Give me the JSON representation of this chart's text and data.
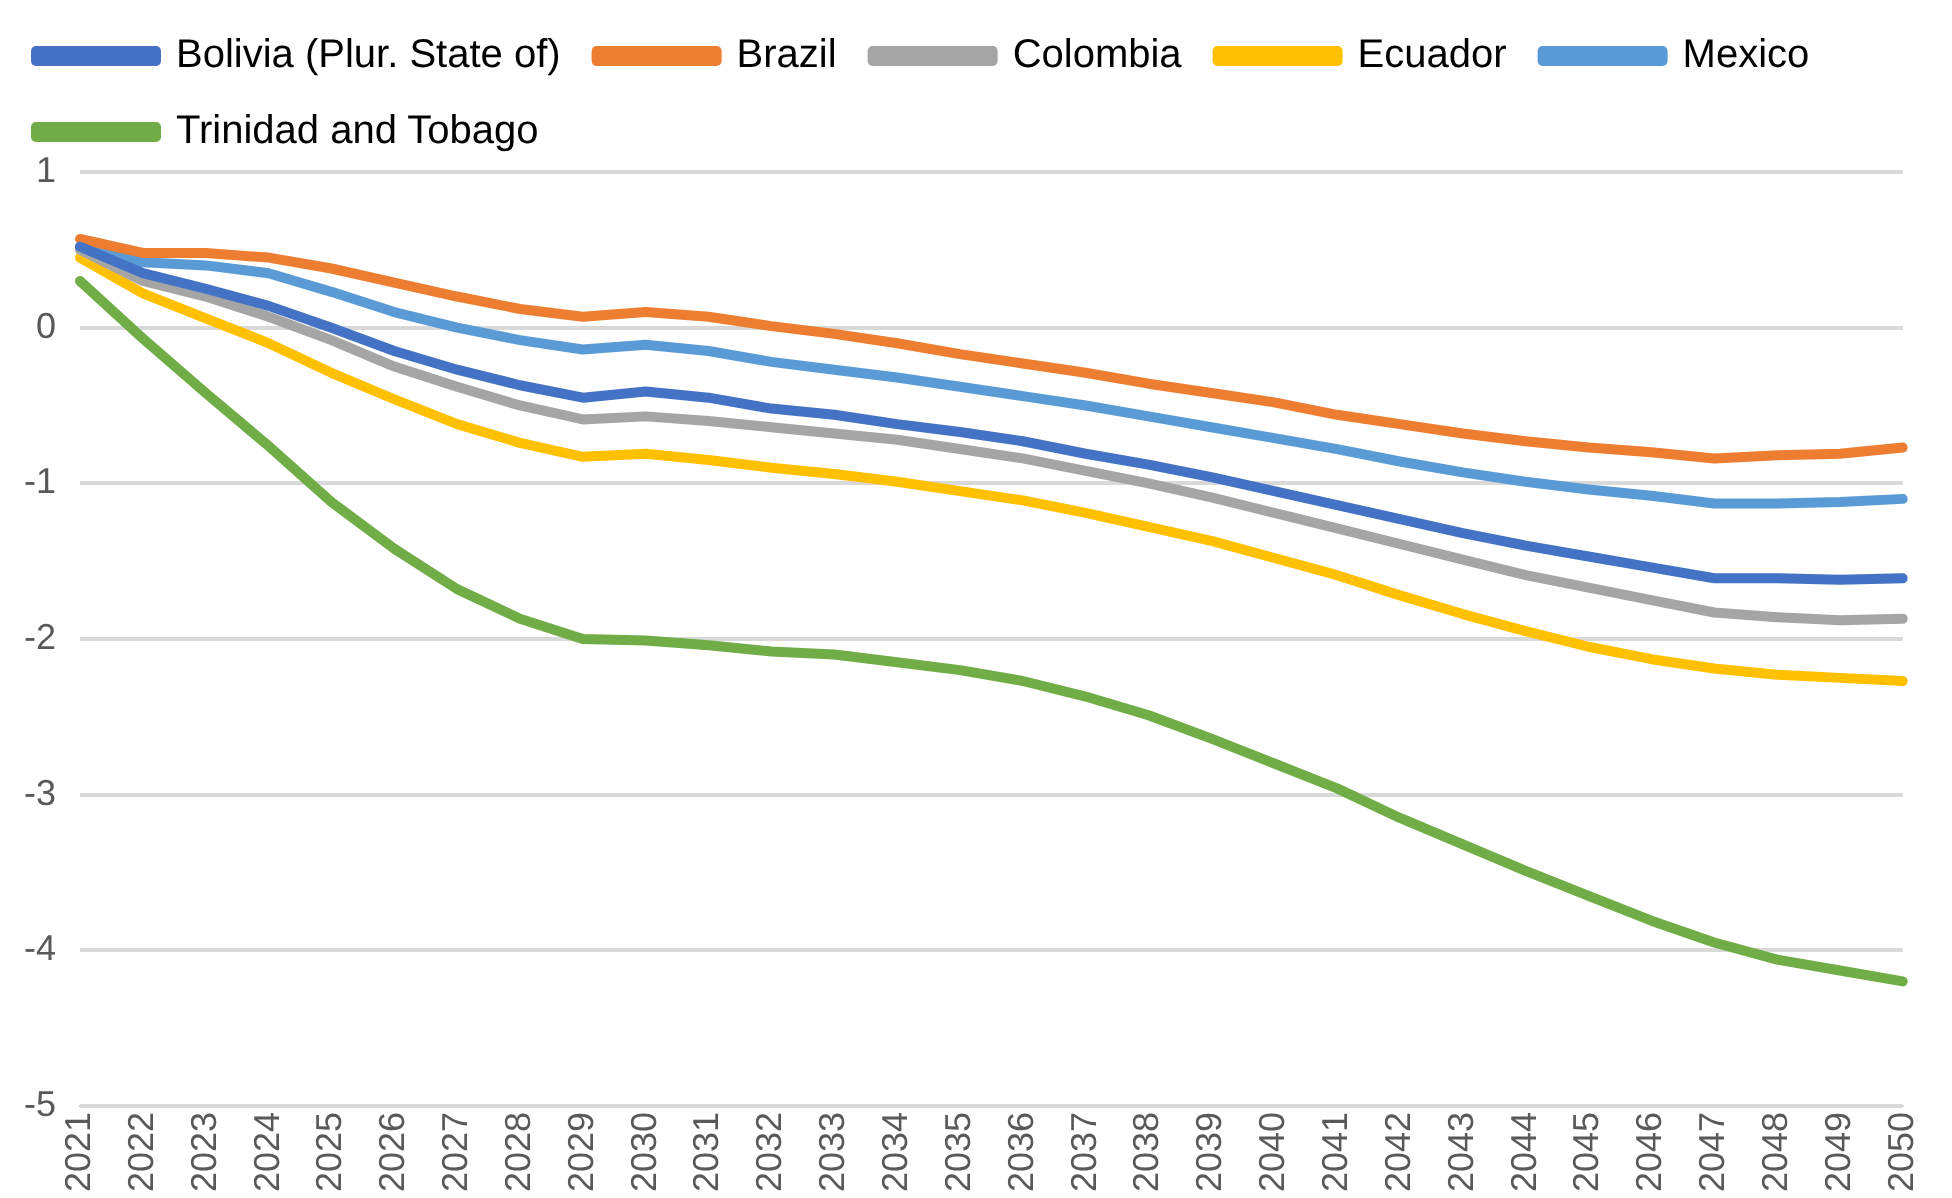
{
  "chart_data": {
    "type": "line",
    "categories": [
      "2021",
      "2022",
      "2023",
      "2024",
      "2025",
      "2026",
      "2027",
      "2028",
      "2029",
      "2030",
      "2031",
      "2032",
      "2033",
      "2034",
      "2035",
      "2036",
      "2037",
      "2038",
      "2039",
      "2040",
      "2041",
      "2042",
      "2043",
      "2044",
      "2045",
      "2046",
      "2047",
      "2048",
      "2049",
      "2050"
    ],
    "series": [
      {
        "name": "Bolivia (Plur. State of)",
        "color": "#4472c4",
        "values": [
          0.52,
          0.35,
          0.25,
          0.14,
          0.0,
          -0.15,
          -0.27,
          -0.37,
          -0.45,
          -0.41,
          -0.45,
          -0.52,
          -0.56,
          -0.62,
          -0.67,
          -0.73,
          -0.81,
          -0.88,
          -0.96,
          -1.05,
          -1.14,
          -1.23,
          -1.32,
          -1.4,
          -1.47,
          -1.54,
          -1.61,
          -1.61,
          -1.62,
          -1.61
        ]
      },
      {
        "name": "Brazil",
        "color": "#ed7d31",
        "values": [
          0.57,
          0.48,
          0.48,
          0.45,
          0.38,
          0.29,
          0.2,
          0.12,
          0.07,
          0.1,
          0.07,
          0.01,
          -0.04,
          -0.1,
          -0.17,
          -0.23,
          -0.29,
          -0.36,
          -0.42,
          -0.48,
          -0.56,
          -0.62,
          -0.68,
          -0.73,
          -0.77,
          -0.8,
          -0.84,
          -0.82,
          -0.81,
          -0.77
        ]
      },
      {
        "name": "Colombia",
        "color": "#a5a5a5",
        "values": [
          0.5,
          0.3,
          0.2,
          0.07,
          -0.08,
          -0.25,
          -0.38,
          -0.5,
          -0.59,
          -0.57,
          -0.6,
          -0.64,
          -0.68,
          -0.72,
          -0.78,
          -0.84,
          -0.92,
          -1.0,
          -1.09,
          -1.19,
          -1.29,
          -1.39,
          -1.49,
          -1.59,
          -1.67,
          -1.75,
          -1.83,
          -1.86,
          -1.88,
          -1.87
        ]
      },
      {
        "name": "Ecuador",
        "color": "#ffc000",
        "values": [
          0.45,
          0.22,
          0.06,
          -0.1,
          -0.29,
          -0.46,
          -0.62,
          -0.74,
          -0.83,
          -0.81,
          -0.85,
          -0.9,
          -0.94,
          -0.99,
          -1.05,
          -1.11,
          -1.19,
          -1.28,
          -1.37,
          -1.48,
          -1.59,
          -1.72,
          -1.84,
          -1.95,
          -2.05,
          -2.13,
          -2.19,
          -2.23,
          -2.25,
          -2.27
        ]
      },
      {
        "name": "Mexico",
        "color": "#5b9bd5",
        "values": [
          0.52,
          0.42,
          0.4,
          0.35,
          0.23,
          0.1,
          0.0,
          -0.08,
          -0.14,
          -0.11,
          -0.15,
          -0.22,
          -0.27,
          -0.32,
          -0.38,
          -0.44,
          -0.5,
          -0.57,
          -0.64,
          -0.71,
          -0.78,
          -0.86,
          -0.93,
          -0.99,
          -1.04,
          -1.08,
          -1.13,
          -1.13,
          -1.12,
          -1.1
        ]
      },
      {
        "name": "Trinidad and Tobago",
        "color": "#70ad47",
        "values": [
          0.3,
          -0.07,
          -0.42,
          -0.76,
          -1.12,
          -1.42,
          -1.68,
          -1.87,
          -2.0,
          -2.01,
          -2.04,
          -2.08,
          -2.1,
          -2.15,
          -2.2,
          -2.27,
          -2.37,
          -2.49,
          -2.64,
          -2.8,
          -2.96,
          -3.15,
          -3.32,
          -3.49,
          -3.65,
          -3.81,
          -3.95,
          -4.06,
          -4.13,
          -4.2
        ]
      }
    ],
    "ylim": [
      -5,
      1
    ],
    "yticks": [
      -5,
      -4,
      -3,
      -2,
      -1,
      0,
      1
    ],
    "grid": "y",
    "legend": "top",
    "marker": "none",
    "line_style": "solid"
  }
}
